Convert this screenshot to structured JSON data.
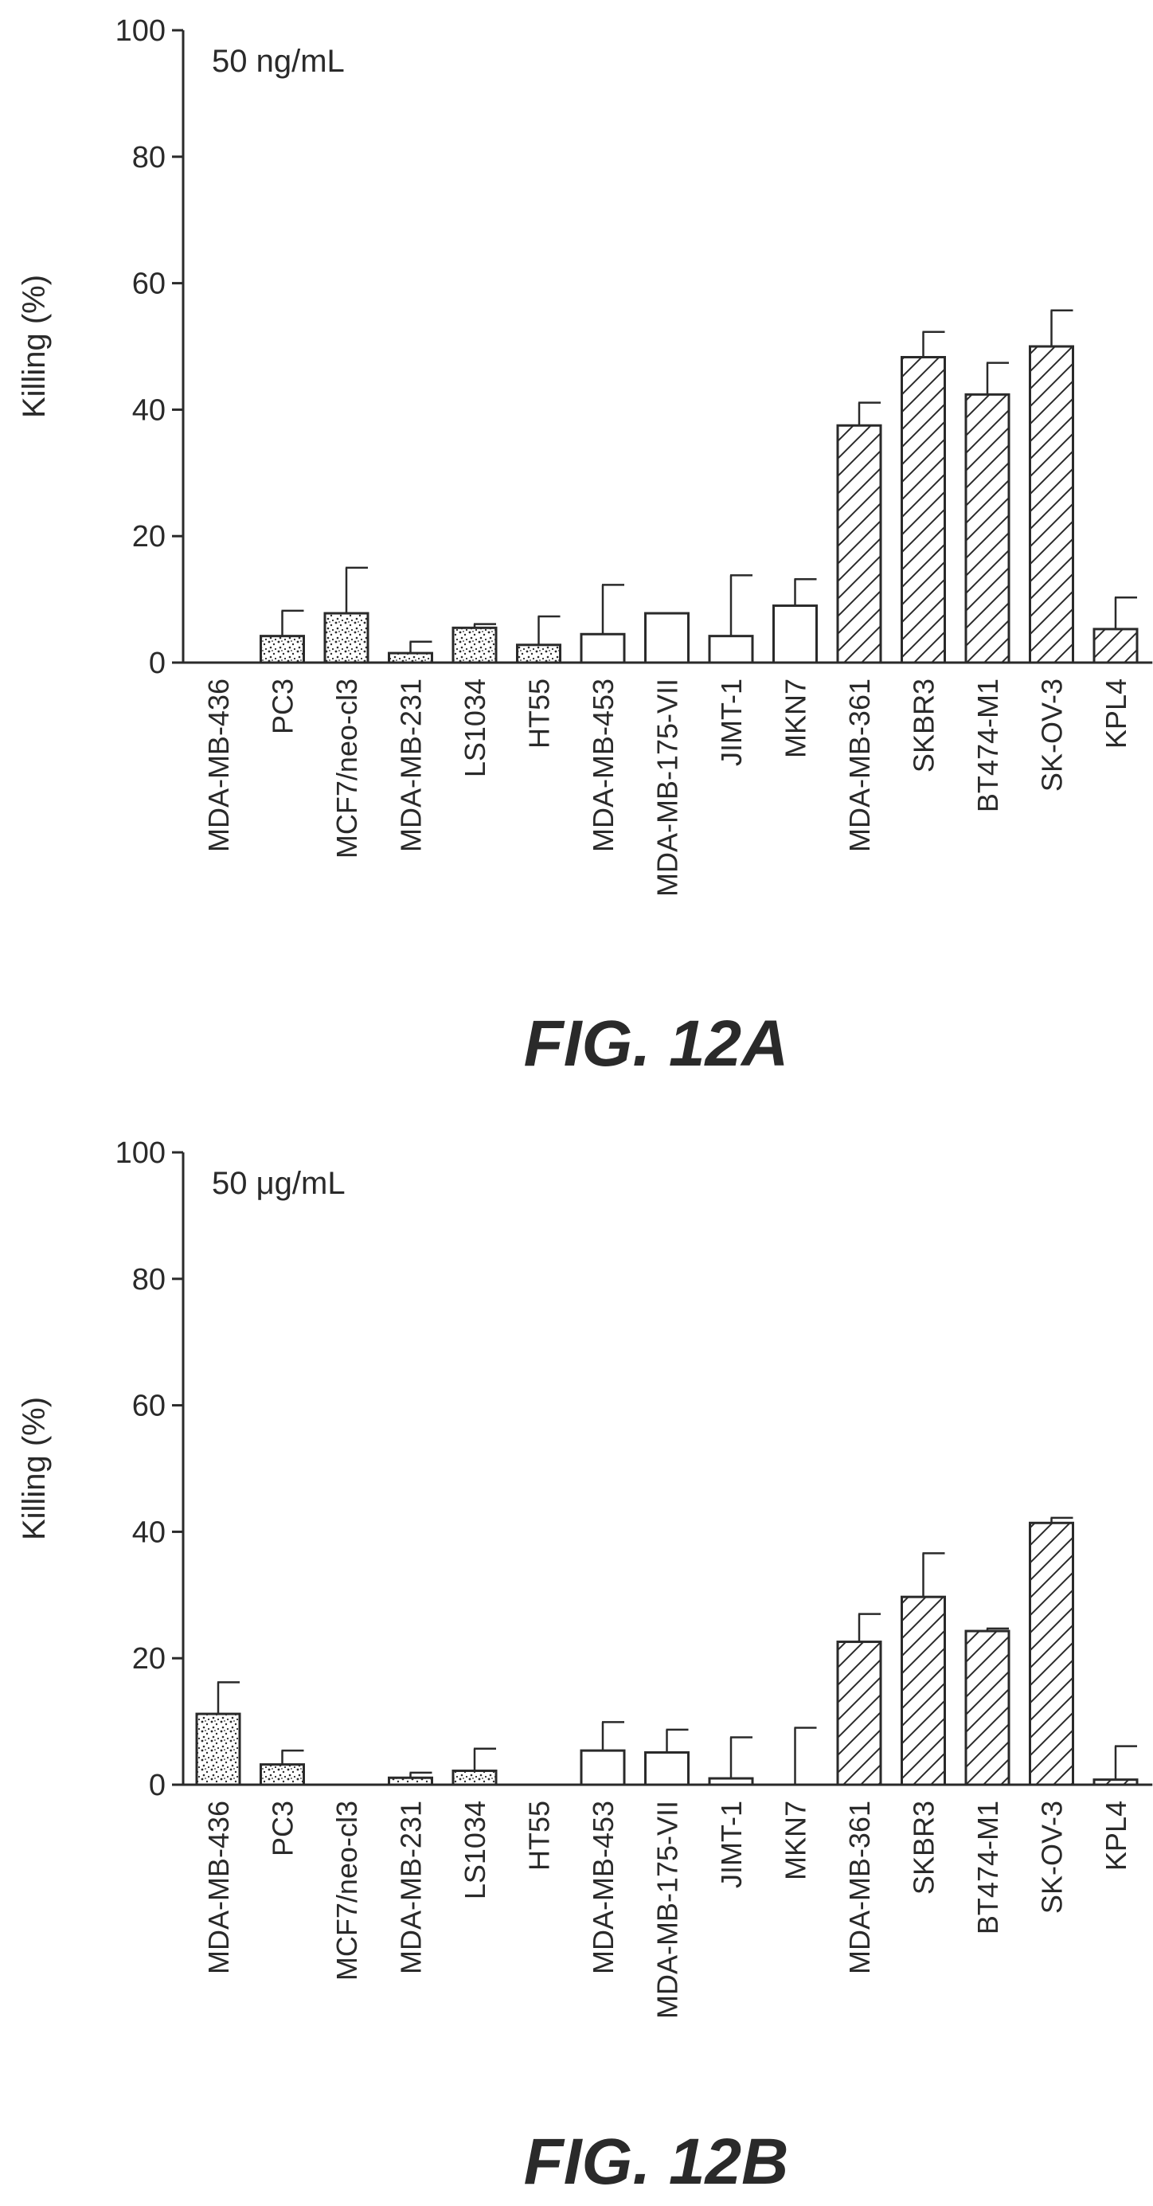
{
  "chart_data": [
    {
      "type": "bar",
      "panel": "FIG. 12A",
      "annotation": "50 ng/mL",
      "ylabel": "Killing (%)",
      "xlabel": "",
      "ylim": [
        0,
        100
      ],
      "yticks": [
        0,
        20,
        40,
        60,
        80,
        100
      ],
      "grid": false,
      "categories": [
        "MDA-MB-436",
        "PC3",
        "MCF7/neo-cl3",
        "MDA-MB-231",
        "LS1034",
        "HT55",
        "MDA-MB-453",
        "MDA-MB-175-VII",
        "JIMT-1",
        "MKN7",
        "MDA-MB-361",
        "SKBR3",
        "BT474-M1",
        "SK-OV-3",
        "KPL4"
      ],
      "values": [
        0,
        4.2,
        7.8,
        1.5,
        5.5,
        2.8,
        4.5,
        7.8,
        4.2,
        9.0,
        37.5,
        48.3,
        42.4,
        50.0,
        5.3
      ],
      "errors": [
        0,
        4.0,
        7.2,
        1.8,
        0.6,
        4.5,
        7.8,
        0,
        9.6,
        4.2,
        3.6,
        4.0,
        5.0,
        5.7,
        5.0
      ],
      "fills": [
        "stipple",
        "stipple",
        "stipple",
        "stipple",
        "stipple",
        "stipple",
        "open",
        "open",
        "open",
        "open",
        "hatch",
        "hatch",
        "hatch",
        "hatch",
        "hatch"
      ]
    },
    {
      "type": "bar",
      "panel": "FIG. 12B",
      "annotation": "50 μg/mL",
      "ylabel": "Killing (%)",
      "xlabel": "",
      "ylim": [
        0,
        100
      ],
      "yticks": [
        0,
        20,
        40,
        60,
        80,
        100
      ],
      "grid": false,
      "categories": [
        "MDA-MB-436",
        "PC3",
        "MCF7/neo-cl3",
        "MDA-MB-231",
        "LS1034",
        "HT55",
        "MDA-MB-453",
        "MDA-MB-175-VII",
        "JIMT-1",
        "MKN7",
        "MDA-MB-361",
        "SKBR3",
        "BT474-M1",
        "SK-OV-3",
        "KPL4"
      ],
      "values": [
        11.2,
        3.2,
        0,
        1.1,
        2.2,
        0,
        5.4,
        5.1,
        1.0,
        0,
        22.6,
        29.7,
        24.3,
        41.4,
        0.8
      ],
      "errors": [
        5.0,
        2.2,
        0,
        0.8,
        3.5,
        0,
        4.5,
        3.6,
        6.5,
        9.0,
        4.4,
        6.9,
        0.4,
        0.8,
        5.3
      ],
      "fills": [
        "stipple",
        "stipple",
        "stipple",
        "stipple",
        "stipple",
        "stipple",
        "open",
        "open",
        "open",
        "open",
        "hatch",
        "hatch",
        "hatch",
        "hatch",
        "hatch"
      ]
    }
  ]
}
